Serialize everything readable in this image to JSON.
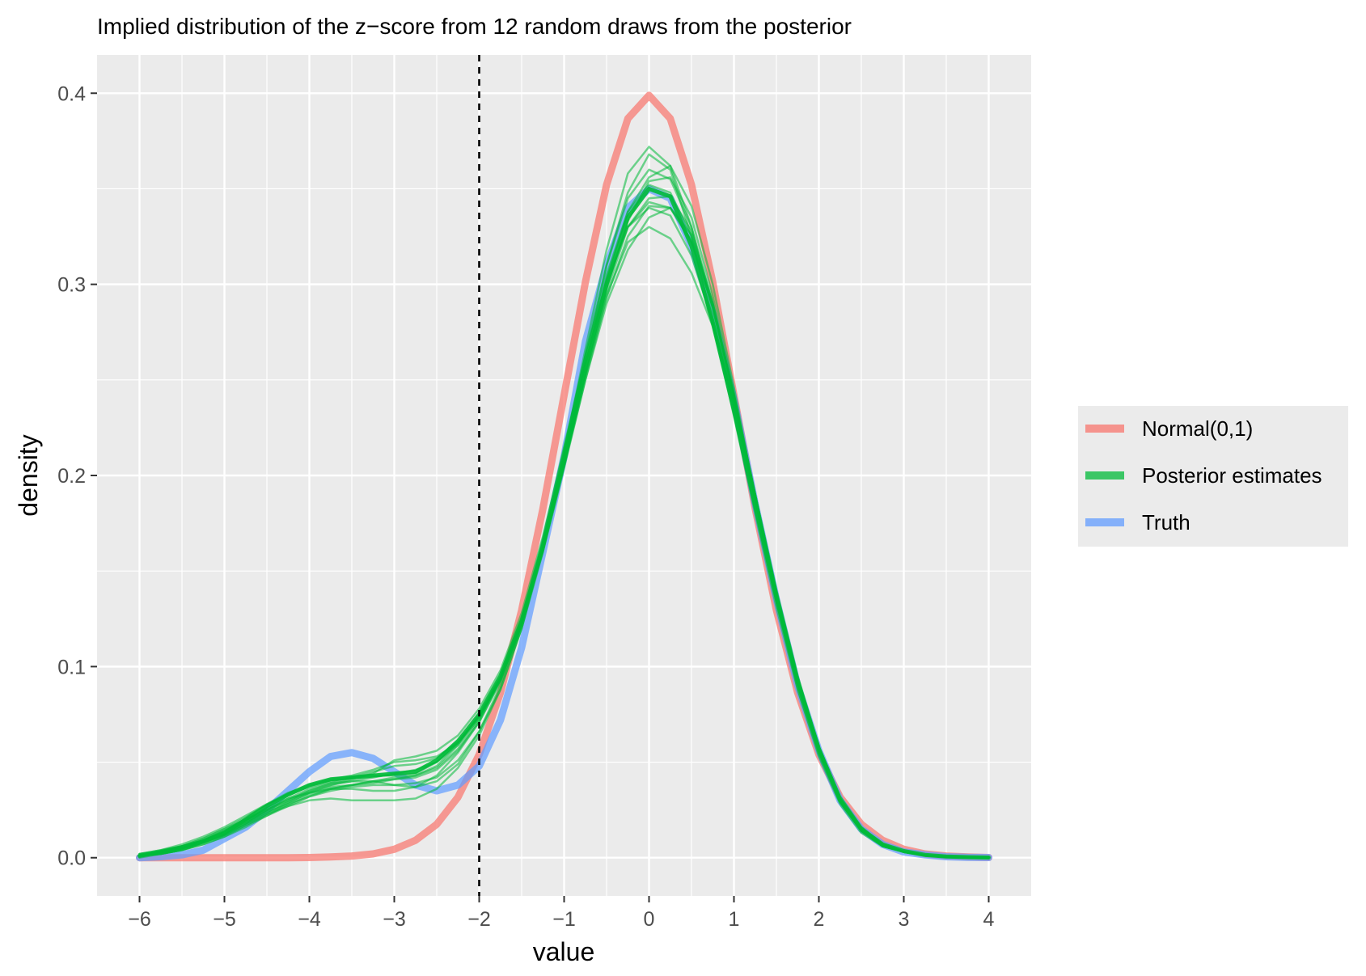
{
  "chart_data": {
    "type": "line",
    "title": "Implied distribution of the z−score from 12 random draws from the posterior",
    "xlabel": "value",
    "ylabel": "density",
    "xlim": [
      -6.5,
      4.5
    ],
    "ylim": [
      -0.02,
      0.42
    ],
    "x_ticks": [
      -6,
      -5,
      -4,
      -3,
      -2,
      -1,
      0,
      1,
      2,
      3,
      4
    ],
    "x_tick_labels": [
      "−6",
      "−5",
      "−4",
      "−3",
      "−2",
      "−1",
      "0",
      "1",
      "2",
      "3",
      "4"
    ],
    "y_ticks": [
      0.0,
      0.1,
      0.2,
      0.3,
      0.4
    ],
    "y_tick_labels": [
      "0.0",
      "0.1",
      "0.2",
      "0.3",
      "0.4"
    ],
    "grid": true,
    "vline": {
      "x": -2,
      "style": "dashed",
      "color": "#000000"
    },
    "legend": {
      "position": "right",
      "entries": [
        {
          "name": "Normal(0,1)",
          "color": "#F8766D"
        },
        {
          "name": "Posterior estimates",
          "color": "#00BA38"
        },
        {
          "name": "Truth",
          "color": "#619CFF"
        }
      ]
    },
    "x": [
      -6,
      -5.75,
      -5.5,
      -5.25,
      -5,
      -4.75,
      -4.5,
      -4.25,
      -4,
      -3.75,
      -3.5,
      -3.25,
      -3,
      -2.75,
      -2.5,
      -2.25,
      -2,
      -1.75,
      -1.5,
      -1.25,
      -1,
      -0.75,
      -0.5,
      -0.25,
      0,
      0.25,
      0.5,
      0.75,
      1,
      1.25,
      1.5,
      1.75,
      2,
      2.25,
      2.5,
      2.75,
      3,
      3.25,
      3.5,
      3.75,
      4
    ],
    "series": [
      {
        "name": "Normal(0,1)",
        "color": "#F8766D",
        "width": 9,
        "opacity": 0.72,
        "values": [
          0.0,
          0.0,
          0.0,
          0.0,
          0.0,
          0.0,
          0.0,
          0.0,
          0.0001,
          0.0004,
          0.0009,
          0.002,
          0.0044,
          0.0091,
          0.0175,
          0.0317,
          0.054,
          0.0863,
          0.1295,
          0.1826,
          0.242,
          0.3011,
          0.3521,
          0.3867,
          0.3989,
          0.3867,
          0.3521,
          0.3011,
          0.242,
          0.1826,
          0.1295,
          0.0863,
          0.054,
          0.0317,
          0.0175,
          0.0091,
          0.0044,
          0.002,
          0.0009,
          0.0004,
          0.0001
        ]
      },
      {
        "name": "Truth",
        "color": "#619CFF",
        "width": 9,
        "opacity": 0.72,
        "values": [
          0.0,
          0.0005,
          0.0015,
          0.004,
          0.01,
          0.016,
          0.025,
          0.035,
          0.045,
          0.053,
          0.055,
          0.052,
          0.045,
          0.038,
          0.035,
          0.038,
          0.048,
          0.072,
          0.11,
          0.16,
          0.21,
          0.27,
          0.31,
          0.34,
          0.35,
          0.345,
          0.32,
          0.285,
          0.24,
          0.185,
          0.135,
          0.09,
          0.056,
          0.03,
          0.015,
          0.007,
          0.003,
          0.0015,
          0.0005,
          0.0002,
          0.0001
        ]
      },
      {
        "name": "Posterior estimates",
        "color": "#00BA38",
        "width": 5,
        "opacity": 0.9,
        "values": [
          0.001,
          0.003,
          0.0055,
          0.0085,
          0.013,
          0.02,
          0.027,
          0.033,
          0.038,
          0.041,
          0.042,
          0.043,
          0.044,
          0.045,
          0.051,
          0.061,
          0.075,
          0.095,
          0.124,
          0.163,
          0.208,
          0.256,
          0.3,
          0.335,
          0.35,
          0.346,
          0.32,
          0.28,
          0.234,
          0.184,
          0.136,
          0.092,
          0.057,
          0.03,
          0.015,
          0.007,
          0.0035,
          0.0015,
          0.0006,
          0.0003,
          0.0001
        ]
      },
      {
        "name": "",
        "color": "#00BA38",
        "width": 2.5,
        "opacity": 0.55,
        "values": [
          0.001,
          0.002,
          0.004,
          0.008,
          0.012,
          0.018,
          0.024,
          0.029,
          0.034,
          0.038,
          0.041,
          0.044,
          0.051,
          0.053,
          0.056,
          0.064,
          0.078,
          0.098,
          0.128,
          0.168,
          0.214,
          0.263,
          0.31,
          0.348,
          0.368,
          0.36,
          0.325,
          0.28,
          0.231,
          0.18,
          0.131,
          0.088,
          0.054,
          0.029,
          0.014,
          0.006,
          0.003,
          0.0012,
          0.0005,
          0.0002,
          0.0001
        ]
      },
      {
        "name": "",
        "color": "#00BA38",
        "width": 2.5,
        "opacity": 0.55,
        "values": [
          0.001,
          0.003,
          0.005,
          0.009,
          0.013,
          0.018,
          0.023,
          0.027,
          0.032,
          0.035,
          0.037,
          0.038,
          0.038,
          0.039,
          0.042,
          0.051,
          0.066,
          0.088,
          0.12,
          0.162,
          0.21,
          0.258,
          0.3,
          0.33,
          0.34,
          0.336,
          0.315,
          0.28,
          0.236,
          0.187,
          0.138,
          0.093,
          0.058,
          0.031,
          0.015,
          0.007,
          0.003,
          0.0013,
          0.0005,
          0.0002,
          0.0001
        ]
      },
      {
        "name": "",
        "color": "#00BA38",
        "width": 2.5,
        "opacity": 0.55,
        "values": [
          0.0,
          0.002,
          0.004,
          0.007,
          0.011,
          0.017,
          0.023,
          0.029,
          0.034,
          0.037,
          0.038,
          0.039,
          0.041,
          0.043,
          0.048,
          0.059,
          0.075,
          0.095,
          0.125,
          0.165,
          0.213,
          0.263,
          0.305,
          0.338,
          0.356,
          0.362,
          0.341,
          0.3,
          0.246,
          0.188,
          0.134,
          0.088,
          0.053,
          0.028,
          0.013,
          0.006,
          0.003,
          0.001,
          0.0004,
          0.0002,
          0.0001
        ]
      },
      {
        "name": "",
        "color": "#00BA38",
        "width": 2.5,
        "opacity": 0.55,
        "values": [
          0.002,
          0.004,
          0.006,
          0.01,
          0.015,
          0.021,
          0.028,
          0.034,
          0.038,
          0.041,
          0.043,
          0.046,
          0.05,
          0.051,
          0.053,
          0.06,
          0.073,
          0.093,
          0.122,
          0.161,
          0.206,
          0.253,
          0.294,
          0.322,
          0.33,
          0.324,
          0.306,
          0.278,
          0.239,
          0.19,
          0.14,
          0.095,
          0.058,
          0.032,
          0.016,
          0.007,
          0.003,
          0.0012,
          0.0005,
          0.0002,
          0.0001
        ]
      },
      {
        "name": "",
        "color": "#00BA38",
        "width": 2.5,
        "opacity": 0.55,
        "values": [
          0.001,
          0.002,
          0.005,
          0.008,
          0.012,
          0.018,
          0.025,
          0.031,
          0.036,
          0.039,
          0.04,
          0.04,
          0.038,
          0.037,
          0.04,
          0.049,
          0.066,
          0.09,
          0.124,
          0.167,
          0.215,
          0.262,
          0.302,
          0.33,
          0.343,
          0.34,
          0.323,
          0.288,
          0.241,
          0.189,
          0.138,
          0.092,
          0.056,
          0.03,
          0.014,
          0.007,
          0.003,
          0.0013,
          0.0005,
          0.0002,
          0.0001
        ]
      },
      {
        "name": "",
        "color": "#00BA38",
        "width": 2.5,
        "opacity": 0.55,
        "values": [
          0.001,
          0.003,
          0.006,
          0.009,
          0.014,
          0.019,
          0.024,
          0.028,
          0.032,
          0.036,
          0.038,
          0.04,
          0.042,
          0.043,
          0.047,
          0.057,
          0.072,
          0.094,
          0.124,
          0.162,
          0.207,
          0.255,
          0.298,
          0.333,
          0.354,
          0.356,
          0.335,
          0.294,
          0.243,
          0.189,
          0.137,
          0.092,
          0.056,
          0.03,
          0.014,
          0.007,
          0.003,
          0.0012,
          0.0005,
          0.0002,
          0.0001
        ]
      },
      {
        "name": "",
        "color": "#00BA38",
        "width": 2.5,
        "opacity": 0.55,
        "values": [
          0.001,
          0.002,
          0.004,
          0.008,
          0.012,
          0.017,
          0.022,
          0.027,
          0.03,
          0.031,
          0.03,
          0.03,
          0.03,
          0.031,
          0.036,
          0.047,
          0.064,
          0.088,
          0.12,
          0.162,
          0.212,
          0.266,
          0.318,
          0.358,
          0.372,
          0.362,
          0.33,
          0.285,
          0.236,
          0.184,
          0.135,
          0.091,
          0.056,
          0.03,
          0.014,
          0.006,
          0.003,
          0.0012,
          0.0005,
          0.0002,
          0.0001
        ]
      },
      {
        "name": "",
        "color": "#00BA38",
        "width": 2.5,
        "opacity": 0.55,
        "values": [
          0.002,
          0.004,
          0.007,
          0.011,
          0.016,
          0.022,
          0.028,
          0.033,
          0.037,
          0.04,
          0.042,
          0.043,
          0.043,
          0.044,
          0.05,
          0.06,
          0.074,
          0.094,
          0.123,
          0.161,
          0.205,
          0.252,
          0.296,
          0.33,
          0.345,
          0.346,
          0.328,
          0.29,
          0.242,
          0.19,
          0.139,
          0.094,
          0.057,
          0.031,
          0.015,
          0.007,
          0.003,
          0.0013,
          0.0005,
          0.0002,
          0.0001
        ]
      },
      {
        "name": "",
        "color": "#00BA38",
        "width": 2.5,
        "opacity": 0.55,
        "values": [
          0.001,
          0.003,
          0.005,
          0.009,
          0.014,
          0.02,
          0.026,
          0.031,
          0.034,
          0.036,
          0.036,
          0.035,
          0.035,
          0.037,
          0.043,
          0.055,
          0.071,
          0.093,
          0.122,
          0.162,
          0.209,
          0.258,
          0.303,
          0.338,
          0.352,
          0.348,
          0.325,
          0.288,
          0.24,
          0.189,
          0.138,
          0.093,
          0.057,
          0.031,
          0.015,
          0.007,
          0.003,
          0.0012,
          0.0005,
          0.0002,
          0.0001
        ]
      },
      {
        "name": "",
        "color": "#00BA38",
        "width": 2.5,
        "opacity": 0.55,
        "values": [
          0.002,
          0.003,
          0.006,
          0.01,
          0.015,
          0.02,
          0.025,
          0.03,
          0.035,
          0.039,
          0.042,
          0.045,
          0.048,
          0.049,
          0.052,
          0.061,
          0.074,
          0.094,
          0.123,
          0.161,
          0.205,
          0.25,
          0.29,
          0.318,
          0.335,
          0.34,
          0.326,
          0.29,
          0.242,
          0.19,
          0.139,
          0.094,
          0.058,
          0.031,
          0.015,
          0.007,
          0.003,
          0.0013,
          0.0005,
          0.0002,
          0.0001
        ]
      },
      {
        "name": "",
        "color": "#00BA38",
        "width": 2.5,
        "opacity": 0.55,
        "values": [
          0.001,
          0.002,
          0.004,
          0.007,
          0.011,
          0.016,
          0.022,
          0.028,
          0.033,
          0.036,
          0.038,
          0.04,
          0.041,
          0.042,
          0.046,
          0.056,
          0.071,
          0.092,
          0.12,
          0.16,
          0.208,
          0.26,
          0.31,
          0.345,
          0.36,
          0.355,
          0.33,
          0.29,
          0.24,
          0.187,
          0.136,
          0.091,
          0.055,
          0.03,
          0.014,
          0.006,
          0.003,
          0.0012,
          0.0005,
          0.0002,
          0.0001
        ]
      },
      {
        "name": "",
        "color": "#00BA38",
        "width": 2.5,
        "opacity": 0.55,
        "values": [
          0.001,
          0.003,
          0.005,
          0.009,
          0.013,
          0.019,
          0.025,
          0.03,
          0.035,
          0.038,
          0.04,
          0.042,
          0.044,
          0.046,
          0.05,
          0.059,
          0.073,
          0.093,
          0.122,
          0.16,
          0.204,
          0.25,
          0.293,
          0.325,
          0.341,
          0.34,
          0.322,
          0.288,
          0.242,
          0.19,
          0.14,
          0.095,
          0.058,
          0.032,
          0.016,
          0.007,
          0.003,
          0.0013,
          0.0005,
          0.0002,
          0.0001
        ]
      }
    ]
  }
}
